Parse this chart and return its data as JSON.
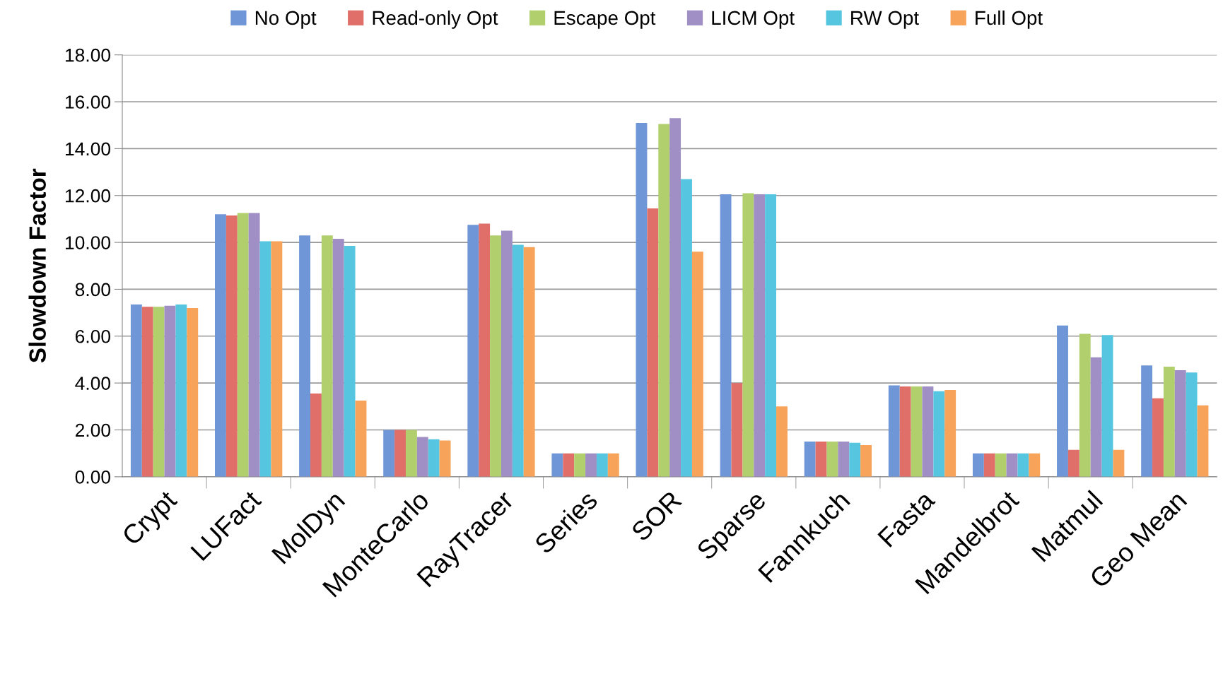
{
  "chart_data": {
    "type": "bar",
    "ylabel": "Slowdown Factor",
    "categories": [
      "Crypt",
      "LUFact",
      "MolDyn",
      "MonteCarlo",
      "RayTracer",
      "Series",
      "SOR",
      "Sparse",
      "Fannkuch",
      "Fasta",
      "Mandelbrot",
      "Matmul",
      "Geo Mean"
    ],
    "series": [
      {
        "name": "No Opt",
        "color": "#6f96d6",
        "values": [
          7.35,
          11.2,
          10.3,
          2.0,
          10.75,
          1.0,
          15.1,
          12.05,
          1.5,
          3.9,
          1.0,
          6.45,
          4.75
        ]
      },
      {
        "name": "Read-only Opt",
        "color": "#e06f6a",
        "values": [
          7.25,
          11.15,
          3.55,
          2.0,
          10.8,
          1.0,
          11.45,
          4.0,
          1.5,
          3.85,
          1.0,
          1.15,
          3.35
        ]
      },
      {
        "name": "Escape Opt",
        "color": "#b2cf6e",
        "values": [
          7.25,
          11.25,
          10.3,
          2.0,
          10.3,
          1.0,
          15.05,
          12.1,
          1.5,
          3.85,
          1.0,
          6.1,
          4.7
        ]
      },
      {
        "name": "LICM Opt",
        "color": "#a08fc4",
        "values": [
          7.3,
          11.25,
          10.15,
          1.7,
          10.5,
          1.0,
          15.3,
          12.05,
          1.5,
          3.85,
          1.0,
          5.1,
          4.55
        ]
      },
      {
        "name": "RW Opt",
        "color": "#55c5e0",
        "values": [
          7.35,
          10.05,
          9.85,
          1.6,
          9.9,
          1.0,
          12.7,
          12.05,
          1.45,
          3.65,
          1.0,
          6.05,
          4.45
        ]
      },
      {
        "name": "Full Opt",
        "color": "#f7a35a",
        "values": [
          7.2,
          10.05,
          3.25,
          1.55,
          9.8,
          1.0,
          9.6,
          3.0,
          1.35,
          3.7,
          1.0,
          1.15,
          3.05
        ]
      }
    ],
    "ylim": [
      0,
      18
    ],
    "yticks": [
      {
        "value": 0,
        "label": "0.00"
      },
      {
        "value": 2,
        "label": "2.00"
      },
      {
        "value": 4,
        "label": "4.00"
      },
      {
        "value": 6,
        "label": "6.00"
      },
      {
        "value": 8,
        "label": "8.00"
      },
      {
        "value": 10,
        "label": "10.00"
      },
      {
        "value": 12,
        "label": "12.00"
      },
      {
        "value": 14,
        "label": "14.00"
      },
      {
        "value": 16,
        "label": "16.00"
      },
      {
        "value": 18,
        "label": "18.00"
      }
    ],
    "grid": "y",
    "legend": "top"
  }
}
